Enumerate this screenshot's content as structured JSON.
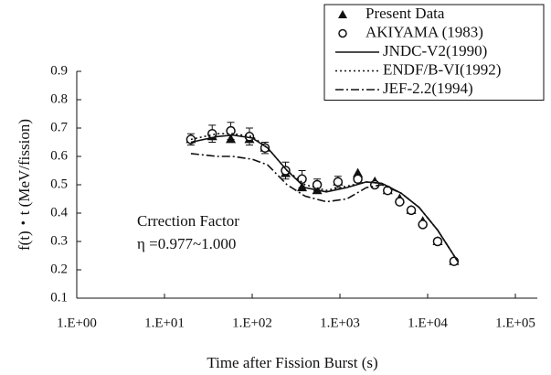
{
  "chart_data": {
    "type": "scatter",
    "xlabel": "Time after Fission Burst (s)",
    "ylabel": "f(t)・t (MeV/fission)",
    "annotations": [
      "Crrection Factor",
      "η =0.977~1.000"
    ],
    "xscale": "log",
    "xlim": [
      1,
      100000
    ],
    "xticks": [
      {
        "value": 1,
        "label": "1.E+00"
      },
      {
        "value": 10,
        "label": "1.E+01"
      },
      {
        "value": 100,
        "label": "1.E+02"
      },
      {
        "value": 1000,
        "label": "1.E+03"
      },
      {
        "value": 10000,
        "label": "1.E+04"
      },
      {
        "value": 100000,
        "label": "1.E+05"
      }
    ],
    "ylim": [
      0.1,
      0.9
    ],
    "yticks": [
      0.1,
      0.2,
      0.3,
      0.4,
      0.5,
      0.6,
      0.7,
      0.8,
      0.9
    ],
    "legend": "upper right",
    "series": [
      {
        "name": "Present Data",
        "marker": "triangle",
        "color": "#111111",
        "x": [
          20,
          35,
          57,
          93,
          140,
          240,
          370,
          550,
          950,
          1600,
          2500,
          3500,
          4800,
          6500,
          8800,
          13000,
          20000
        ],
        "values": [
          0.66,
          0.67,
          0.66,
          0.66,
          0.63,
          0.54,
          0.49,
          0.48,
          0.51,
          0.54,
          0.51,
          0.48,
          0.45,
          0.41,
          0.37,
          0.3,
          0.23
        ]
      },
      {
        "name": "AKIYAMA (1983)",
        "marker": "circle",
        "color": "#111111",
        "x": [
          20,
          35,
          57,
          93,
          140,
          240,
          370,
          550,
          950,
          1600,
          2500,
          3500,
          4800,
          6500,
          8800,
          13000,
          20000
        ],
        "values": [
          0.66,
          0.68,
          0.69,
          0.67,
          0.63,
          0.55,
          0.52,
          0.5,
          0.51,
          0.52,
          0.5,
          0.48,
          0.44,
          0.41,
          0.36,
          0.3,
          0.23
        ],
        "errors": [
          0.02,
          0.03,
          0.03,
          0.03,
          0.02,
          0.03,
          0.03,
          0.02,
          0.02,
          0.01,
          0.01,
          0.01,
          0.01,
          0.01,
          0.01,
          0.01,
          0.01
        ]
      },
      {
        "name": "JNDC-V2(1990)",
        "line": "solid",
        "color": "#111111",
        "x": [
          20,
          40,
          60,
          100,
          150,
          250,
          400,
          700,
          1200,
          2000,
          3000,
          5000,
          8000,
          13000,
          22000
        ],
        "values": [
          0.65,
          0.67,
          0.675,
          0.665,
          0.63,
          0.55,
          0.49,
          0.475,
          0.49,
          0.51,
          0.505,
          0.47,
          0.42,
          0.34,
          0.23
        ]
      },
      {
        "name": "ENDF/B-VI(1992)",
        "line": "dotted",
        "color": "#111111",
        "x": [
          20,
          40,
          60,
          100,
          150,
          250,
          400,
          700,
          1200,
          2000,
          3000,
          5000,
          8000,
          13000,
          22000
        ],
        "values": [
          0.66,
          0.68,
          0.68,
          0.67,
          0.63,
          0.55,
          0.5,
          0.48,
          0.495,
          0.51,
          0.505,
          0.47,
          0.42,
          0.34,
          0.23
        ]
      },
      {
        "name": "JEF-2.2(1994)",
        "line": "dashdot",
        "color": "#111111",
        "x": [
          20,
          40,
          60,
          100,
          150,
          250,
          400,
          700,
          1200,
          2000,
          3000,
          5000,
          8000,
          13000,
          22000
        ],
        "values": [
          0.61,
          0.6,
          0.6,
          0.59,
          0.57,
          0.5,
          0.46,
          0.44,
          0.45,
          0.49,
          0.5,
          0.47,
          0.42,
          0.34,
          0.23
        ]
      }
    ]
  }
}
